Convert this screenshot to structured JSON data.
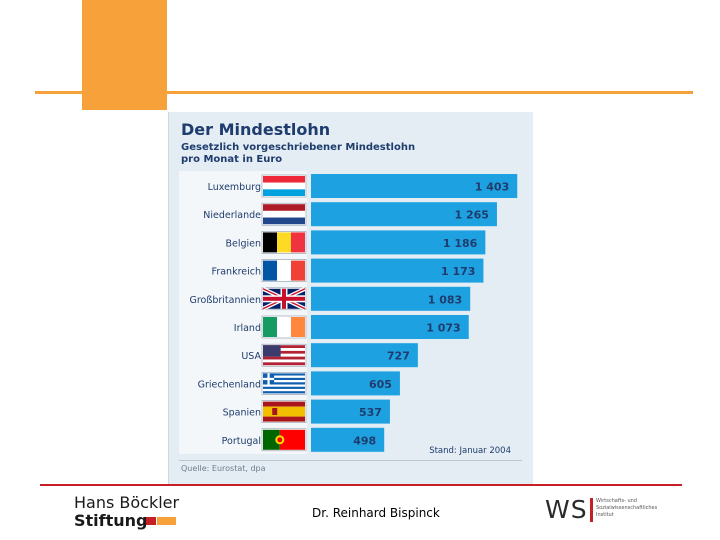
{
  "chart_data": {
    "type": "bar",
    "orientation": "horizontal",
    "title": "Der Mindestlohn",
    "subtitle": "Gesetzlich vorgeschriebener Mindestlohn pro Monat in Euro",
    "categories": [
      "Luxemburg",
      "Niederlande",
      "Belgien",
      "Frankreich",
      "Großbritannien",
      "Irland",
      "USA",
      "Griechenland",
      "Spanien",
      "Portugal"
    ],
    "values": [
      1403,
      1265,
      1186,
      1173,
      1083,
      1073,
      727,
      605,
      537,
      498
    ],
    "value_labels": [
      "1 403",
      "1 265",
      "1 186",
      "1 173",
      "1 083",
      "1 073",
      "727",
      "605",
      "537",
      "498"
    ],
    "flags": [
      "flag-luxembourg-icon",
      "flag-netherlands-icon",
      "flag-belgium-icon",
      "flag-france-icon",
      "flag-uk-icon",
      "flag-ireland-icon",
      "flag-usa-icon",
      "flag-greece-icon",
      "flag-spain-icon",
      "flag-portugal-icon"
    ],
    "xlim": [
      0,
      1600
    ],
    "note": "Stand: Januar 2004",
    "source": "Quelle: Eurostat, dpa",
    "bar_color": "#1ea1e0"
  },
  "footer": {
    "logo_line1": "Hans Böckler",
    "logo_line2": "Stiftung",
    "author": "Dr. Reinhard Bispinck",
    "wsi_letters": "WSI",
    "wsi_small": "Wirtschafts- und Sozialwissenschaftliches Institut"
  },
  "colors": {
    "accent_orange": "#f6a13a",
    "line_red": "#c62026",
    "title_navy": "#1e3c6e"
  }
}
